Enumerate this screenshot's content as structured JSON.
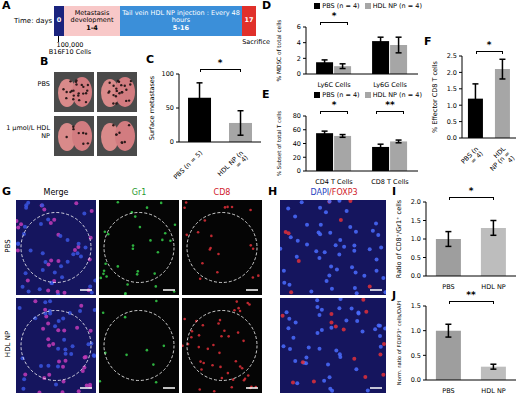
{
  "panel_letters": [
    "A",
    "B",
    "C",
    "D",
    "E",
    "F",
    "G",
    "H",
    "I",
    "J"
  ],
  "timeline": {
    "axis_label": "Time: days",
    "segments": [
      {
        "label": "0",
        "color": "#1a237e"
      },
      {
        "label": "1-4",
        "text": "Metastasis development",
        "color": "#f8c8c8"
      },
      {
        "label": "5-16",
        "text": "Tail vein HDL NP injection : Every 48 hours",
        "color": "#3b8fd9"
      },
      {
        "label": "17",
        "color": "#e0302a"
      }
    ],
    "start_note": [
      "100,000",
      "B16F10 Cells"
    ],
    "end_note": "Sacrifice"
  },
  "lung_photos": {
    "rows": [
      "PBS",
      "1 μmol/L HDL NP"
    ]
  },
  "tissue_images": {
    "columns": [
      "Merge",
      "Gr1",
      "CD8"
    ],
    "rows": [
      "PBS",
      "HDL NP"
    ],
    "stain_title": "DAPI/FOXP3"
  },
  "chart_data": [
    {
      "type": "bar",
      "y_label": "Surface metastases",
      "categories": [
        "PBS (n = 5)",
        "HDL NP (n = 4)"
      ],
      "values": [
        65,
        28
      ],
      "errors": [
        22,
        18
      ],
      "colors": [
        "#000000",
        "#a6a6a6"
      ],
      "ylim": [
        0,
        100
      ],
      "yticks": [
        0,
        50,
        100
      ],
      "annotations": [
        {
          "text": "*",
          "between": [
            "PBS (n = 5)",
            "HDL NP (n = 4)"
          ]
        }
      ]
    },
    {
      "type": "bar",
      "y_label": "% MDSC of total cells",
      "categories": [
        "Ly6C Cells",
        "Ly6G Cells"
      ],
      "series": [
        {
          "name": "PBS (n = 4)",
          "color": "#000000",
          "values": [
            1.5,
            4.2
          ],
          "errors": [
            0.3,
            0.5
          ]
        },
        {
          "name": "HDL NP (n = 4)",
          "color": "#a6a6a6",
          "values": [
            1.0,
            3.7
          ],
          "errors": [
            0.3,
            1.0
          ]
        }
      ],
      "ylim": [
        0,
        6
      ],
      "yticks": [
        0,
        2,
        4,
        6
      ],
      "legend": "upper right",
      "annotations": [
        {
          "text": "*",
          "category": "Ly6C Cells"
        }
      ]
    },
    {
      "type": "bar",
      "y_label": "% Subset of total T cells",
      "categories": [
        "CD4 T Cells",
        "CD8 T Cells"
      ],
      "series": [
        {
          "name": "PBS (n = 4)",
          "color": "#000000",
          "values": [
            55,
            35
          ],
          "errors": [
            3,
            4
          ]
        },
        {
          "name": "HDL NP (n = 4)",
          "color": "#a6a6a6",
          "values": [
            51,
            43
          ],
          "errors": [
            2,
            2
          ]
        }
      ],
      "ylim": [
        0,
        80
      ],
      "yticks": [
        0,
        20,
        40,
        60,
        80
      ],
      "legend": "upper right",
      "annotations": [
        {
          "text": "*",
          "category": "CD4 T Cells"
        },
        {
          "text": "**",
          "category": "CD8 T Cells"
        }
      ]
    },
    {
      "type": "bar",
      "y_label": "% Effector CD8 T cells",
      "categories": [
        "PBS (n = 4)",
        "HDL NP (n = 4)"
      ],
      "values": [
        1.2,
        2.1
      ],
      "errors": [
        0.45,
        0.3
      ],
      "colors": [
        "#000000",
        "#a6a6a6"
      ],
      "ylim": [
        0,
        2.5
      ],
      "yticks": [
        {
          "value": 0,
          "label": "0.0"
        },
        0.5,
        {
          "value": 1,
          "label": "1.0"
        },
        1.5,
        {
          "value": 2,
          "label": "2.0"
        },
        2.5
      ],
      "annotations": [
        {
          "text": "*",
          "between": [
            "PBS (n = 4)",
            "HDL NP (n = 4)"
          ]
        }
      ]
    },
    {
      "type": "bar",
      "y_label": "Ratio of CD8⁺/Gr1⁺ cells",
      "categories": [
        "PBS",
        "HDL NP"
      ],
      "values": [
        1.0,
        1.3
      ],
      "errors": [
        0.2,
        0.2
      ],
      "colors": [
        "#9e9e9e",
        "#bdbdbd"
      ],
      "ylim": [
        0,
        2
      ],
      "yticks": [
        {
          "value": 0,
          "label": "0.0"
        },
        0.5,
        {
          "value": 1,
          "label": "1.0"
        },
        1.5,
        {
          "value": 2,
          "label": "2.0"
        }
      ],
      "annotations": [
        {
          "text": "*",
          "between": [
            "PBS",
            "HDL NP"
          ]
        }
      ]
    },
    {
      "type": "bar",
      "y_label": "Norm. ratio of FOXP3⁺ cells/DAPI",
      "categories": [
        "PBS",
        "HDL NP"
      ],
      "values": [
        1.0,
        0.27
      ],
      "errors": [
        0.13,
        0.05
      ],
      "colors": [
        "#9e9e9e",
        "#bdbdbd"
      ],
      "ylim": [
        0,
        1.5
      ],
      "yticks": [
        {
          "value": 0,
          "label": "0.0"
        },
        0.5,
        {
          "value": 1,
          "label": "1.0"
        },
        1.5
      ],
      "annotations": [
        {
          "text": "**",
          "between": [
            "PBS",
            "HDL NP"
          ]
        }
      ]
    }
  ]
}
